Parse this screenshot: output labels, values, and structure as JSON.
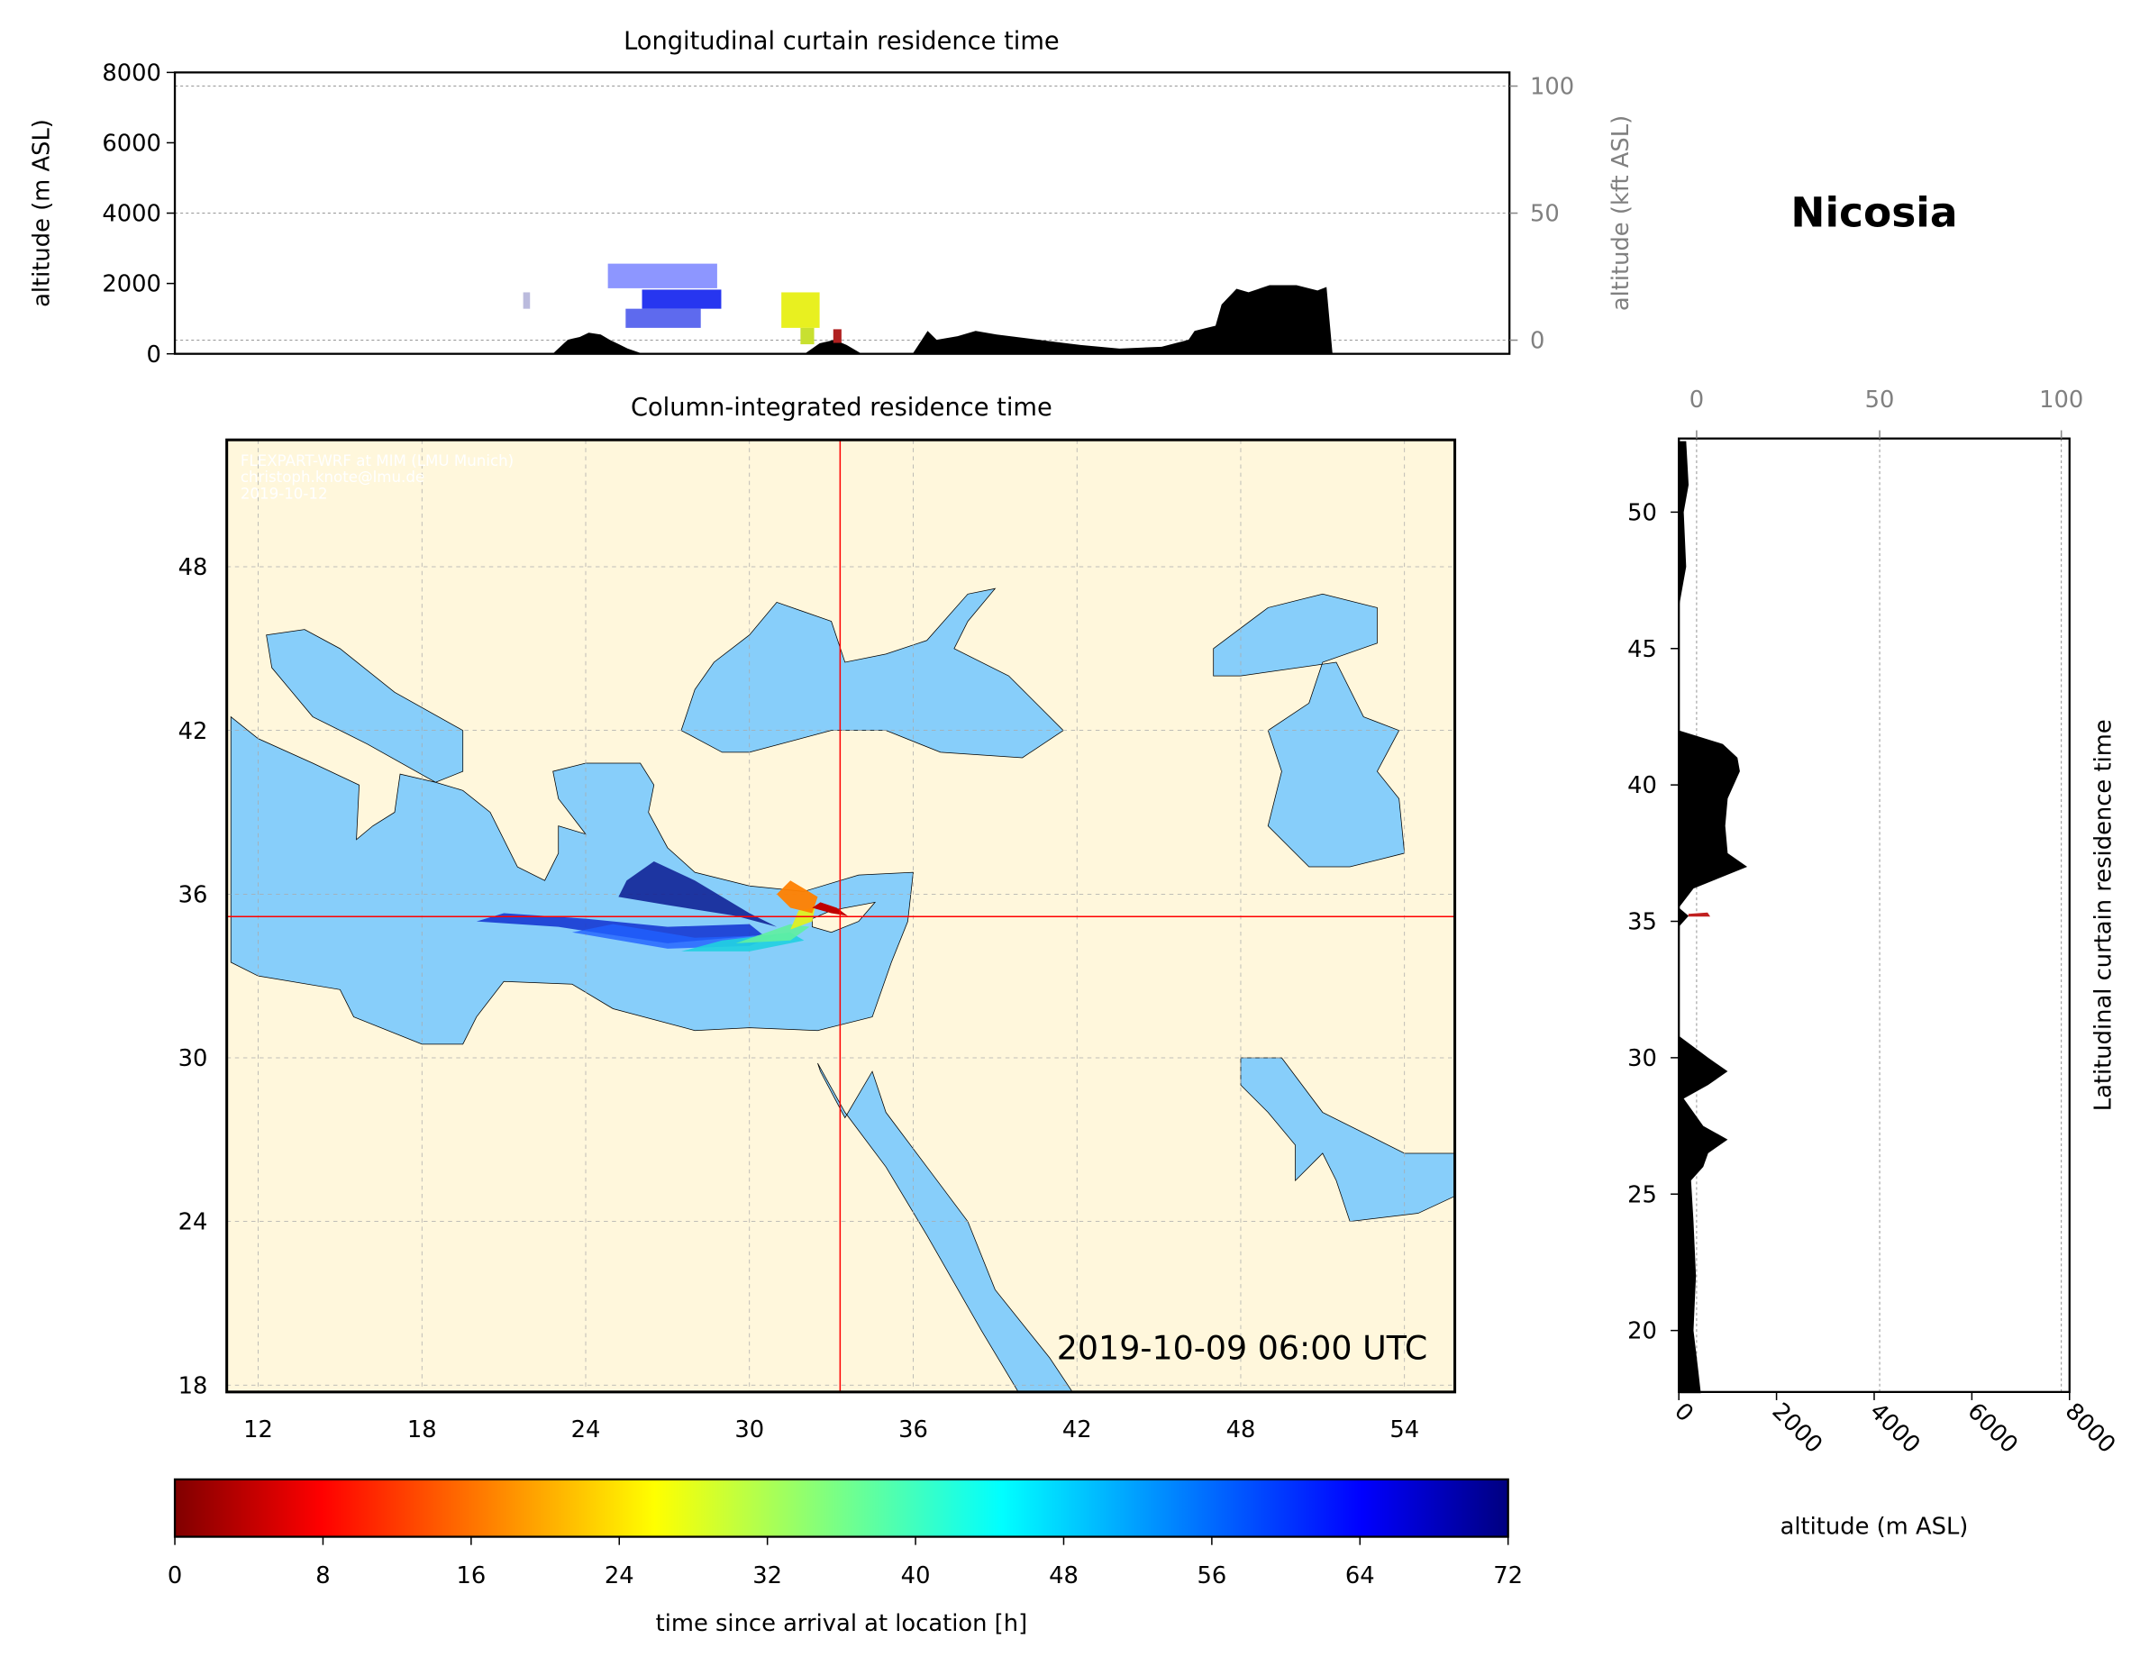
{
  "station": "Nicosia",
  "timestamp": "2019-10-09 06:00 UTC",
  "credits": [
    "FLEXPART-WRF at MIM (LMU Munich)",
    "christoph.knote@lmu.de",
    "2019-10-12"
  ],
  "colors": {
    "land": "#fff7dc",
    "sea": "#87cefa",
    "crosshair": "#ff0000",
    "terrain": "#000000"
  },
  "chart_data": [
    {
      "type": "area",
      "title": "Longitudinal curtain residence time",
      "ylabel": "altitude (m ASL)",
      "ylabel_right": "altitude (kft ASL)",
      "ylim": [
        0,
        8000
      ],
      "yticks": [
        "0",
        "2000",
        "4000",
        "6000",
        "8000"
      ],
      "yticks_right": [
        "0",
        "50",
        "100"
      ],
      "terrain": [
        [
          23.6,
          0
        ],
        [
          24.1,
          400
        ],
        [
          24.5,
          480
        ],
        [
          24.8,
          600
        ],
        [
          25.2,
          550
        ],
        [
          25.5,
          400
        ],
        [
          26.1,
          150
        ],
        [
          26.6,
          0
        ],
        [
          32.0,
          0
        ],
        [
          32.5,
          300
        ],
        [
          33.0,
          400
        ],
        [
          33.4,
          250
        ],
        [
          33.9,
          0
        ],
        [
          35.6,
          0
        ],
        [
          36.1,
          650
        ],
        [
          36.4,
          400
        ],
        [
          37.1,
          500
        ],
        [
          37.7,
          650
        ],
        [
          38.4,
          550
        ],
        [
          39.8,
          400
        ],
        [
          41.2,
          250
        ],
        [
          42.5,
          150
        ],
        [
          43.9,
          200
        ],
        [
          44.8,
          400
        ],
        [
          45.0,
          650
        ],
        [
          45.7,
          800
        ],
        [
          45.9,
          1400
        ],
        [
          46.4,
          1850
        ],
        [
          46.8,
          1750
        ],
        [
          47.5,
          1950
        ],
        [
          48.4,
          1950
        ],
        [
          49.1,
          1800
        ],
        [
          49.4,
          1900
        ],
        [
          49.6,
          0
        ]
      ]
    },
    {
      "type": "heatmap",
      "title": "Column-integrated residence time",
      "xticks": [
        "12",
        "18",
        "24",
        "30",
        "36",
        "42",
        "48",
        "54"
      ],
      "yticks": [
        "18",
        "24",
        "30",
        "36",
        "42",
        "48"
      ],
      "xlim": [
        10.85,
        55.84
      ],
      "ylim": [
        17.75,
        52.66
      ],
      "crosshair": {
        "lon": 33.4,
        "lat": 35.2
      },
      "colorbar": {
        "label": "time since arrival at location [h]",
        "range": [
          0,
          72
        ],
        "ticks": [
          "0",
          "8",
          "16",
          "24",
          "32",
          "40",
          "48",
          "56",
          "64",
          "72"
        ],
        "colormap": "jet_r"
      }
    },
    {
      "type": "area",
      "title": "Latitudinal curtain residence time",
      "xlabel": "altitude (m ASL)",
      "xlim": [
        0,
        8000
      ],
      "xticks": [
        "0",
        "2000",
        "4000",
        "6000",
        "8000"
      ],
      "xticks_top": [
        "0",
        "50",
        "100"
      ],
      "yticks": [
        "20",
        "25",
        "30",
        "35",
        "40",
        "45",
        "50"
      ],
      "terrain": [
        [
          17.7,
          450
        ],
        [
          18.5,
          400
        ],
        [
          20,
          300
        ],
        [
          22,
          350
        ],
        [
          24,
          300
        ],
        [
          25.5,
          250
        ],
        [
          26,
          500
        ],
        [
          26.5,
          600
        ],
        [
          27,
          1000
        ],
        [
          27.5,
          500
        ],
        [
          28.5,
          100
        ],
        [
          29,
          600
        ],
        [
          29.5,
          1000
        ],
        [
          30,
          600
        ],
        [
          30.8,
          0
        ],
        [
          34.8,
          0
        ],
        [
          35.2,
          200
        ],
        [
          35.5,
          0
        ],
        [
          36.2,
          300
        ],
        [
          37,
          1400
        ],
        [
          37.5,
          1000
        ],
        [
          38.5,
          950
        ],
        [
          39.5,
          1000
        ],
        [
          40.5,
          1250
        ],
        [
          41,
          1200
        ],
        [
          41.5,
          900
        ],
        [
          42,
          0
        ],
        [
          46.5,
          0
        ],
        [
          48,
          150
        ],
        [
          50,
          100
        ],
        [
          51,
          200
        ],
        [
          52.6,
          150
        ]
      ]
    }
  ]
}
